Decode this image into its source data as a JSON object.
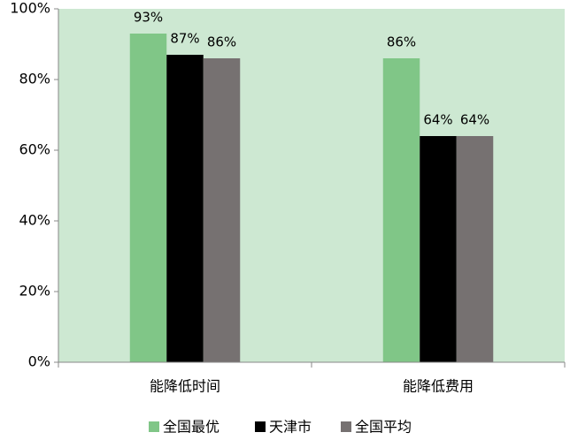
{
  "chart_data": {
    "type": "bar",
    "categories": [
      "能降低时间",
      "能降低费用"
    ],
    "series": [
      {
        "name": "全国最优",
        "color": "#80c687",
        "values": [
          93,
          86
        ],
        "value_labels": [
          "93%",
          "86%"
        ]
      },
      {
        "name": "天津市",
        "color": "#000000",
        "values": [
          87,
          64
        ],
        "value_labels": [
          "87%",
          "64%"
        ]
      },
      {
        "name": "全国平均",
        "color": "#767171",
        "values": [
          86,
          64
        ],
        "value_labels": [
          "86%",
          "64%"
        ]
      }
    ],
    "ylim": [
      0,
      100
    ],
    "yticks": [
      {
        "value": 0,
        "label": "0%"
      },
      {
        "value": 20,
        "label": "20%"
      },
      {
        "value": 40,
        "label": "40%"
      },
      {
        "value": 60,
        "label": "60%"
      },
      {
        "value": 80,
        "label": "80%"
      },
      {
        "value": 100,
        "label": "100%"
      }
    ],
    "legend": "bottom",
    "plot_background": "#cde8d2"
  }
}
